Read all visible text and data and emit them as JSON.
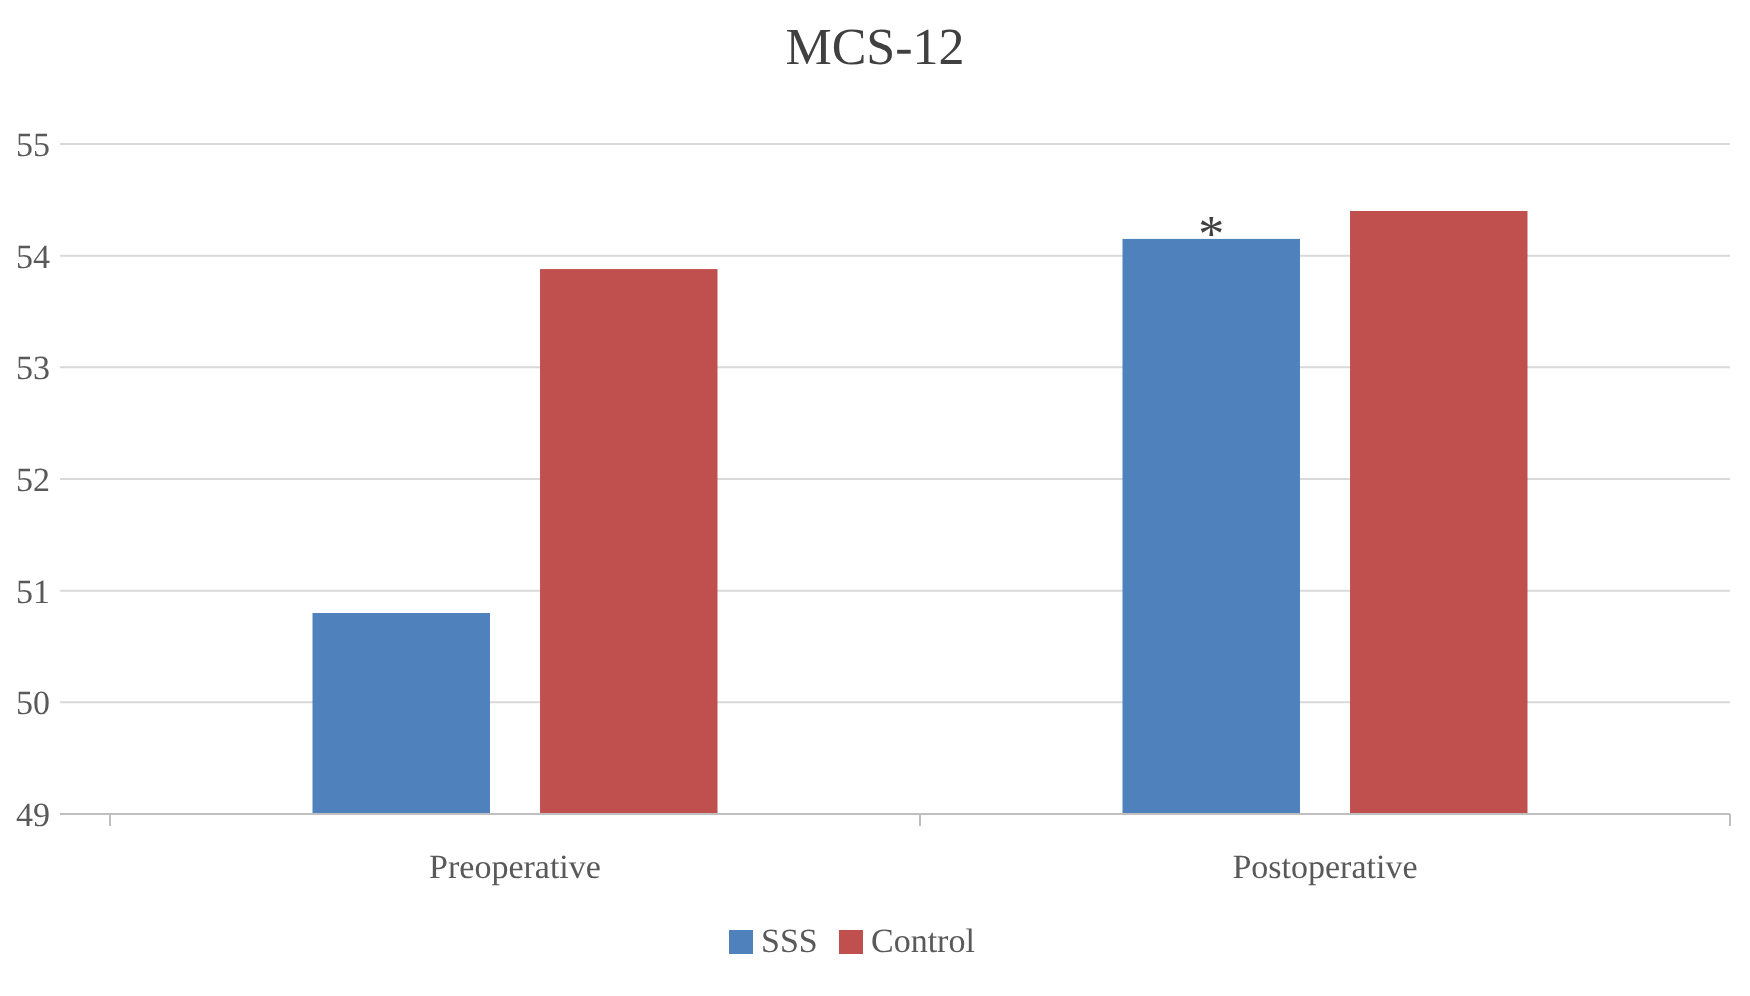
{
  "chart_data": {
    "type": "bar",
    "title": "MCS-12",
    "categories": [
      "Preoperative",
      "Postoperative"
    ],
    "series": [
      {
        "name": "SSS",
        "color": "#4f81bd",
        "values": [
          50.8,
          54.15
        ]
      },
      {
        "name": "Control",
        "color": "#c0504d",
        "values": [
          53.88,
          54.4
        ]
      }
    ],
    "ylim": [
      49,
      55
    ],
    "yticks": [
      49,
      50,
      51,
      52,
      53,
      54,
      55
    ],
    "grid": "y",
    "legend": "bottom",
    "annotations": [
      "*"
    ]
  }
}
